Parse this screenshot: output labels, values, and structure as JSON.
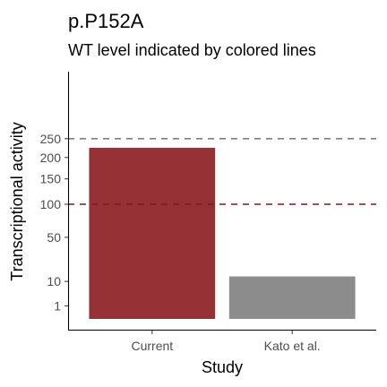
{
  "chart_data": {
    "type": "bar",
    "title": "p.P152A",
    "subtitle": "WT level indicated by colored lines",
    "xlabel": "Study",
    "ylabel": "Transcriptional activity",
    "categories": [
      "Current",
      "Kato et al."
    ],
    "values": [
      225,
      13
    ],
    "bar_colors": [
      "#963236",
      "#8c8c8c"
    ],
    "y_scale": "sqrt",
    "ylim": [
      0,
      400
    ],
    "y_ticks": [
      1,
      10,
      50,
      100,
      150,
      200,
      250
    ],
    "reference_lines": [
      {
        "value": 250,
        "color": "#7f7f7f",
        "style": "dashed"
      },
      {
        "value": 100,
        "color": "#7a1a1f",
        "style": "dashed"
      }
    ],
    "grid": false,
    "legend": "none"
  }
}
